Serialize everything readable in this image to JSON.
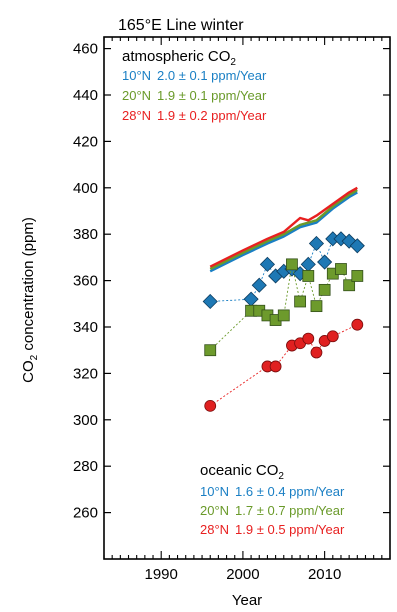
{
  "chart_data": {
    "type": "scatter",
    "title": "165°E Line winter",
    "xlabel": "Year",
    "ylabel_main": "CO",
    "ylabel_sub": "2",
    "ylabel_rest": " concentration (ppm)",
    "xlim": [
      1983,
      2018
    ],
    "ylim": [
      240,
      465
    ],
    "xticks": [
      1990,
      2000,
      2010
    ],
    "yticks": [
      260,
      280,
      300,
      320,
      340,
      360,
      380,
      400,
      420,
      440,
      460
    ],
    "atmospheric_legend": {
      "title_main": "atmospheric CO",
      "title_sub": "2",
      "entries": [
        {
          "lat": "10°N",
          "text": "2.0 ± 0.1 ppm/Year",
          "color": "#1a7fc4"
        },
        {
          "lat": "20°N",
          "text": "1.9 ± 0.1 ppm/Year",
          "color": "#6a9a2a"
        },
        {
          "lat": "28°N",
          "text": "1.9 ± 0.2 ppm/Year",
          "color": "#e82020"
        }
      ]
    },
    "oceanic_legend": {
      "title_main": "oceanic CO",
      "title_sub": "2",
      "entries": [
        {
          "lat": "10°N",
          "text": "1.6 ± 0.4 ppm/Year",
          "color": "#1a7fc4"
        },
        {
          "lat": "20°N",
          "text": "1.7 ± 0.7 ppm/Year",
          "color": "#6a9a2a"
        },
        {
          "lat": "28°N",
          "text": "1.9 ± 0.5 ppm/Year",
          "color": "#e82020"
        }
      ]
    },
    "atmospheric_series": [
      {
        "lat": "10°N",
        "color": "#1a7fc4",
        "points": [
          [
            1996,
            364
          ],
          [
            2000,
            371
          ],
          [
            2003,
            376
          ],
          [
            2005,
            379
          ],
          [
            2007,
            383
          ],
          [
            2009,
            385
          ],
          [
            2011,
            391
          ],
          [
            2013,
            396
          ],
          [
            2014,
            398
          ]
        ]
      },
      {
        "lat": "20°N",
        "color": "#6a9a2a",
        "points": [
          [
            1996,
            365
          ],
          [
            2000,
            372
          ],
          [
            2003,
            377
          ],
          [
            2005,
            380
          ],
          [
            2007,
            384
          ],
          [
            2009,
            386
          ],
          [
            2011,
            392
          ],
          [
            2013,
            397
          ],
          [
            2014,
            399
          ]
        ]
      },
      {
        "lat": "28°N",
        "color": "#e82020",
        "points": [
          [
            1996,
            366
          ],
          [
            2000,
            373
          ],
          [
            2003,
            378
          ],
          [
            2005,
            381
          ],
          [
            2007,
            387
          ],
          [
            2008,
            386
          ],
          [
            2009,
            388
          ],
          [
            2011,
            393
          ],
          [
            2013,
            398
          ],
          [
            2014,
            400
          ]
        ]
      }
    ],
    "oceanic_series": [
      {
        "lat": "10°N",
        "color": "#1a7fc4",
        "fill": "#1e78b4",
        "marker": "diamond",
        "points": [
          [
            1996,
            351
          ],
          [
            2001,
            352
          ],
          [
            2002,
            358
          ],
          [
            2003,
            367
          ],
          [
            2004,
            362
          ],
          [
            2005,
            364
          ],
          [
            2006,
            365
          ],
          [
            2007,
            363
          ],
          [
            2008,
            367
          ],
          [
            2009,
            376
          ],
          [
            2010,
            368
          ],
          [
            2011,
            378
          ],
          [
            2012,
            378
          ],
          [
            2013,
            377
          ],
          [
            2014,
            375
          ]
        ]
      },
      {
        "lat": "20°N",
        "color": "#6a9a2a",
        "fill": "#6d9a2c",
        "marker": "square",
        "points": [
          [
            1996,
            330
          ],
          [
            2001,
            347
          ],
          [
            2002,
            347
          ],
          [
            2003,
            345
          ],
          [
            2004,
            343
          ],
          [
            2005,
            345
          ],
          [
            2006,
            367
          ],
          [
            2007,
            351
          ],
          [
            2008,
            362
          ],
          [
            2009,
            349
          ],
          [
            2010,
            356
          ],
          [
            2011,
            363
          ],
          [
            2012,
            365
          ],
          [
            2013,
            358
          ],
          [
            2014,
            362
          ]
        ]
      },
      {
        "lat": "28°N",
        "color": "#e82020",
        "fill": "#e02020",
        "marker": "circle",
        "points": [
          [
            1996,
            306
          ],
          [
            2003,
            323
          ],
          [
            2004,
            323
          ],
          [
            2006,
            332
          ],
          [
            2007,
            333
          ],
          [
            2008,
            335
          ],
          [
            2009,
            329
          ],
          [
            2010,
            334
          ],
          [
            2011,
            336
          ],
          [
            2014,
            341
          ]
        ]
      }
    ]
  }
}
